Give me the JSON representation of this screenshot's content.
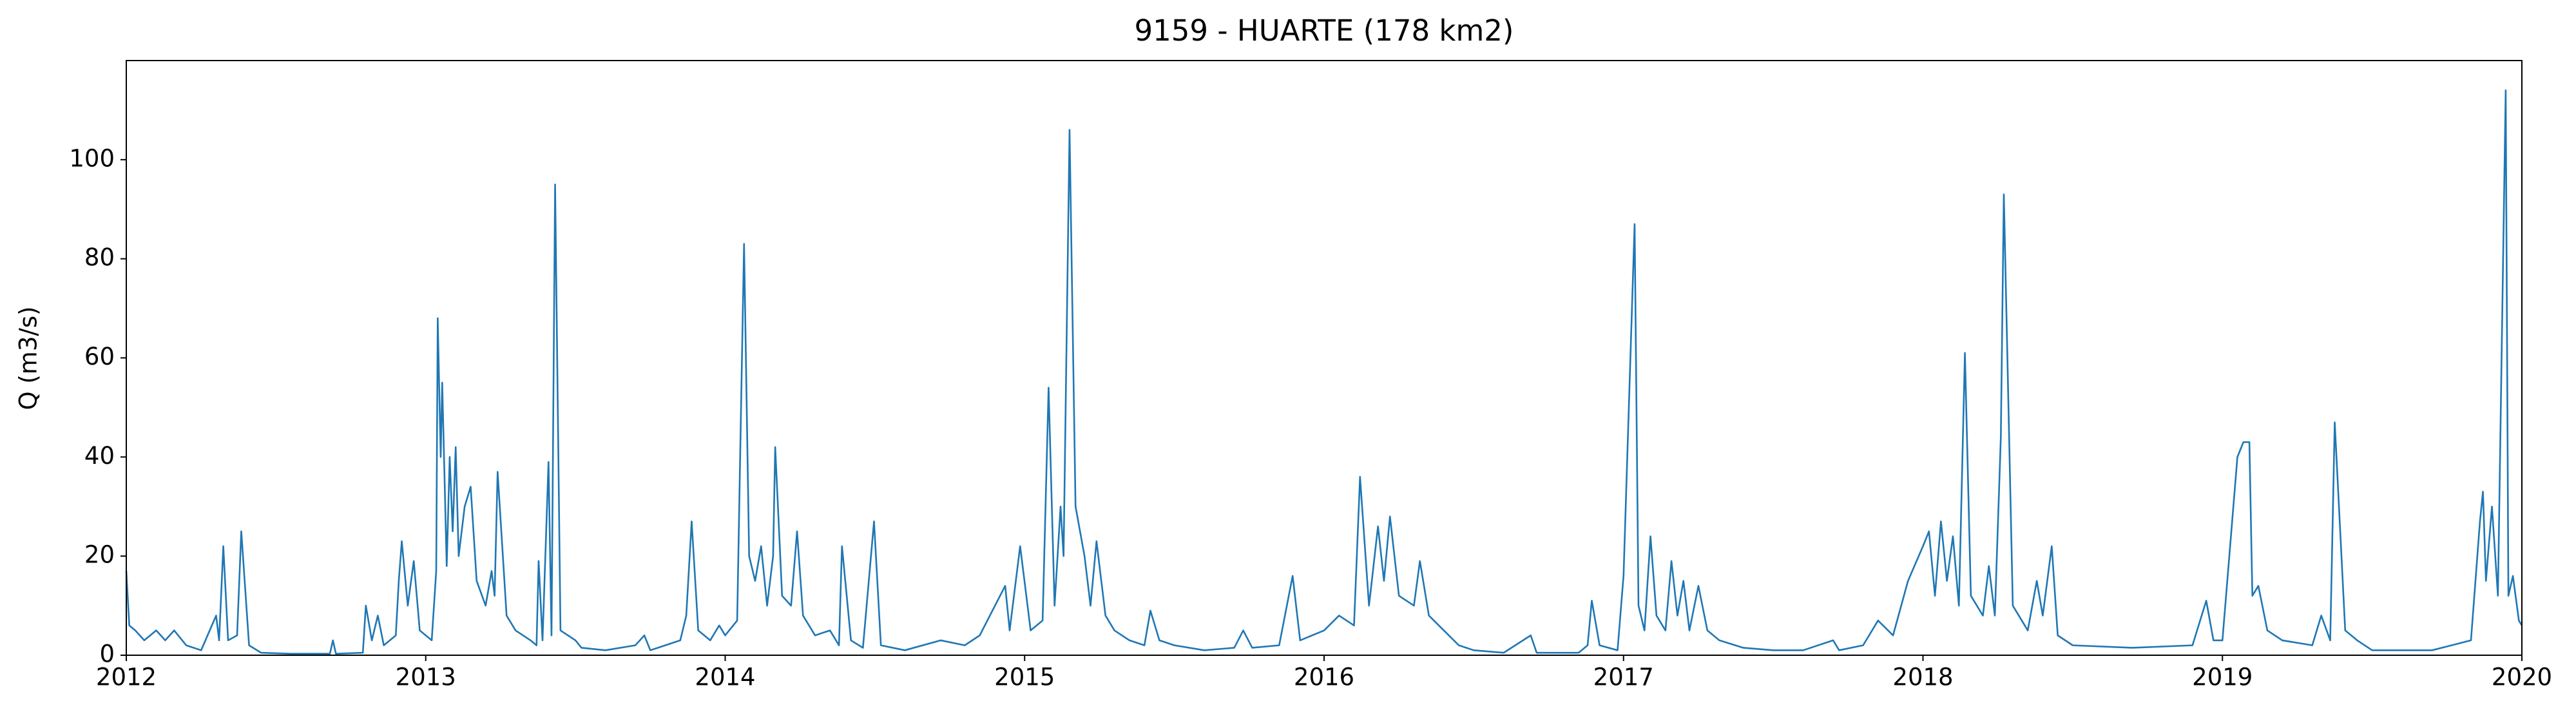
{
  "chart_data": {
    "type": "line",
    "title": "9159 - HUARTE (178 km2)",
    "ylabel": "Q (m3/s)",
    "color": "#1f77b4",
    "xlim": [
      2012,
      2020
    ],
    "xticks": [
      2012,
      2013,
      2014,
      2015,
      2016,
      2017,
      2018,
      2019,
      2020
    ],
    "ylim": [
      0,
      120
    ],
    "yticks": [
      0,
      20,
      40,
      60,
      80,
      100
    ],
    "x": [
      2012.0,
      2012.01,
      2012.03,
      2012.06,
      2012.1,
      2012.13,
      2012.16,
      2012.2,
      2012.25,
      2012.3,
      2012.31,
      2012.324,
      2012.34,
      2012.37,
      2012.384,
      2012.41,
      2012.45,
      2012.55,
      2012.68,
      2012.69,
      2012.7,
      2012.79,
      2012.8,
      2012.82,
      2012.84,
      2012.86,
      2012.9,
      2012.91,
      2012.92,
      2012.94,
      2012.96,
      2012.98,
      2013.02,
      2013.035,
      2013.04,
      2013.05,
      2013.055,
      2013.07,
      2013.08,
      2013.09,
      2013.1,
      2013.11,
      2013.13,
      2013.15,
      2013.17,
      2013.2,
      2013.22,
      2013.23,
      2013.24,
      2013.27,
      2013.3,
      2013.35,
      2013.37,
      2013.377,
      2013.39,
      2013.41,
      2013.42,
      2013.432,
      2013.45,
      2013.5,
      2013.52,
      2013.6,
      2013.7,
      2013.73,
      2013.75,
      2013.8,
      2013.85,
      2013.87,
      2013.888,
      2013.91,
      2013.95,
      2013.98,
      2014.0,
      2014.04,
      2014.063,
      2014.08,
      2014.1,
      2014.12,
      2014.14,
      2014.16,
      2014.167,
      2014.19,
      2014.22,
      2014.24,
      2014.26,
      2014.3,
      2014.35,
      2014.38,
      2014.39,
      2014.42,
      2014.46,
      2014.497,
      2014.52,
      2014.6,
      2014.72,
      2014.8,
      2014.85,
      2014.935,
      2014.95,
      2014.985,
      2015.02,
      2015.06,
      2015.08,
      2015.1,
      2015.12,
      2015.13,
      2015.15,
      2015.17,
      2015.2,
      2015.22,
      2015.24,
      2015.27,
      2015.3,
      2015.35,
      2015.4,
      2015.42,
      2015.45,
      2015.5,
      2015.6,
      2015.7,
      2015.73,
      2015.76,
      2015.85,
      2015.895,
      2015.92,
      2016.0,
      2016.05,
      2016.1,
      2016.12,
      2016.15,
      2016.18,
      2016.2,
      2016.22,
      2016.25,
      2016.3,
      2016.32,
      2016.35,
      2016.4,
      2016.45,
      2016.5,
      2016.6,
      2016.69,
      2016.71,
      2016.85,
      2016.88,
      2016.894,
      2016.92,
      2016.98,
      2017.0,
      2017.037,
      2017.05,
      2017.07,
      2017.09,
      2017.11,
      2017.14,
      2017.16,
      2017.18,
      2017.2,
      2017.22,
      2017.25,
      2017.28,
      2017.32,
      2017.4,
      2017.5,
      2017.6,
      2017.7,
      2017.72,
      2017.8,
      2017.85,
      2017.9,
      2017.95,
      2018.0,
      2018.02,
      2018.04,
      2018.06,
      2018.08,
      2018.1,
      2018.12,
      2018.14,
      2018.16,
      2018.2,
      2018.22,
      2018.24,
      2018.26,
      2018.27,
      2018.3,
      2018.35,
      2018.38,
      2018.4,
      2018.43,
      2018.45,
      2018.5,
      2018.7,
      2018.9,
      2018.946,
      2018.97,
      2019.0,
      2019.05,
      2019.07,
      2019.09,
      2019.1,
      2019.12,
      2019.15,
      2019.2,
      2019.3,
      2019.33,
      2019.36,
      2019.375,
      2019.41,
      2019.45,
      2019.5,
      2019.7,
      2019.83,
      2019.86,
      2019.87,
      2019.88,
      2019.9,
      2019.92,
      2019.946,
      2019.955,
      2019.97,
      2019.99,
      2020.0
    ],
    "values": [
      17,
      6,
      5,
      3,
      5,
      3,
      5,
      2,
      1,
      8,
      3,
      22,
      3,
      4,
      25,
      2,
      0.5,
      0.3,
      0.3,
      3,
      0.3,
      0.5,
      10,
      3,
      8,
      2,
      4,
      15,
      23,
      10,
      19,
      5,
      3,
      17,
      68,
      40,
      55,
      18,
      40,
      25,
      42,
      20,
      30,
      34,
      15,
      10,
      17,
      12,
      37,
      8,
      5,
      3,
      2,
      19,
      3,
      39,
      4,
      95,
      5,
      3,
      1.5,
      1,
      2,
      4,
      1,
      2,
      3,
      8,
      27,
      5,
      3,
      6,
      4,
      7,
      83,
      20,
      15,
      22,
      10,
      20,
      42,
      12,
      10,
      25,
      8,
      4,
      5,
      2,
      22,
      3,
      1.5,
      27,
      2,
      1,
      3,
      2,
      4,
      14,
      5,
      22,
      5,
      7,
      54,
      10,
      30,
      20,
      106,
      30,
      20,
      10,
      23,
      8,
      5,
      3,
      2,
      9,
      3,
      2,
      1,
      1.5,
      5,
      1.5,
      2,
      16,
      3,
      5,
      8,
      6,
      36,
      10,
      26,
      15,
      28,
      12,
      10,
      19,
      8,
      5,
      2,
      1,
      0.5,
      4,
      0.5,
      0.5,
      2,
      11,
      2,
      1,
      16,
      87,
      10,
      5,
      24,
      8,
      5,
      19,
      8,
      15,
      5,
      14,
      5,
      3,
      1.5,
      1,
      1,
      3,
      1,
      2,
      7,
      4,
      15,
      22,
      25,
      12,
      27,
      15,
      24,
      10,
      61,
      12,
      8,
      18,
      8,
      44,
      93,
      10,
      5,
      15,
      8,
      22,
      4,
      2,
      1.5,
      2,
      11,
      3,
      3,
      40,
      43,
      43,
      12,
      14,
      5,
      3,
      2,
      8,
      3,
      47,
      5,
      3,
      1,
      1,
      3,
      27,
      33,
      15,
      30,
      12,
      114,
      12,
      16,
      7,
      6
    ]
  }
}
